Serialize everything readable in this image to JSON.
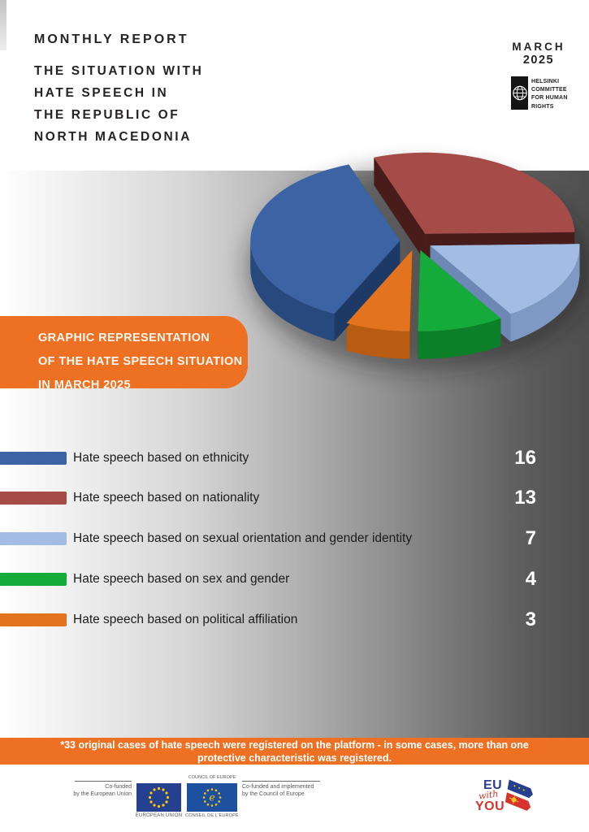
{
  "header": {
    "report_label": "MONTHLY REPORT",
    "title_lines": [
      "THE SITUATION WITH",
      "HATE SPEECH IN",
      "THE REPUBLIC OF",
      "NORTH MACEDONIA"
    ],
    "month_line1": "MARCH",
    "month_line2": "2025",
    "helsinki_logo_lines": [
      "HELSINKI",
      "COMMITTEE",
      "FOR HUMAN",
      "RIGHTS"
    ]
  },
  "banner": {
    "lines": [
      "GRAPHIC REPRESENTATION",
      "OF THE HATE SPEECH SITUATION",
      "IN MARCH 2025"
    ]
  },
  "chart_data": {
    "type": "pie",
    "style": "3d-exploded",
    "title": "GRAPHIC REPRESENTATION OF THE HATE SPEECH SITUATION IN MARCH 2025",
    "categories": [
      "Hate speech based on ethnicity",
      "Hate speech based on nationality",
      "Hate speech based on sexual orientation and gender identity",
      "Hate speech based on sex and gender",
      "Hate speech based on political affiliation"
    ],
    "values": [
      16,
      13,
      7,
      4,
      3
    ],
    "colors": [
      "#3c63a4",
      "#a54c48",
      "#a3bce4",
      "#14ab3a",
      "#e4731f"
    ],
    "side_colors": [
      "#27497e",
      "#7b322f",
      "#7e99c4",
      "#0c8029",
      "#b85c12"
    ],
    "cut_colors": [
      "#1d3a66",
      "#471c1a",
      "#6d88b5",
      "#086b20",
      "#8f470e"
    ],
    "start_angle_deg": -20,
    "draw_order": [
      1,
      2,
      3,
      4,
      0
    ],
    "legend_position": "below"
  },
  "footnote": {
    "text": "*33 original cases of hate speech were registered on the platform - in some cases, more than one protective characteristic was registered."
  },
  "footer": {
    "eu_cofunded_lines": [
      "Co-funded",
      "by the European Union"
    ],
    "eu_flag_caption": "EUROPEAN UNION",
    "coe_title": "COUNCIL OF EUROPE",
    "coe_caption": "CONSEIL DE L'EUROPE",
    "coe_cofunded_lines": [
      "Co-funded and implemented",
      "by the Council of Europe"
    ],
    "eu_with_you": {
      "eu": "EU",
      "with": "with",
      "you": "YOU"
    }
  }
}
